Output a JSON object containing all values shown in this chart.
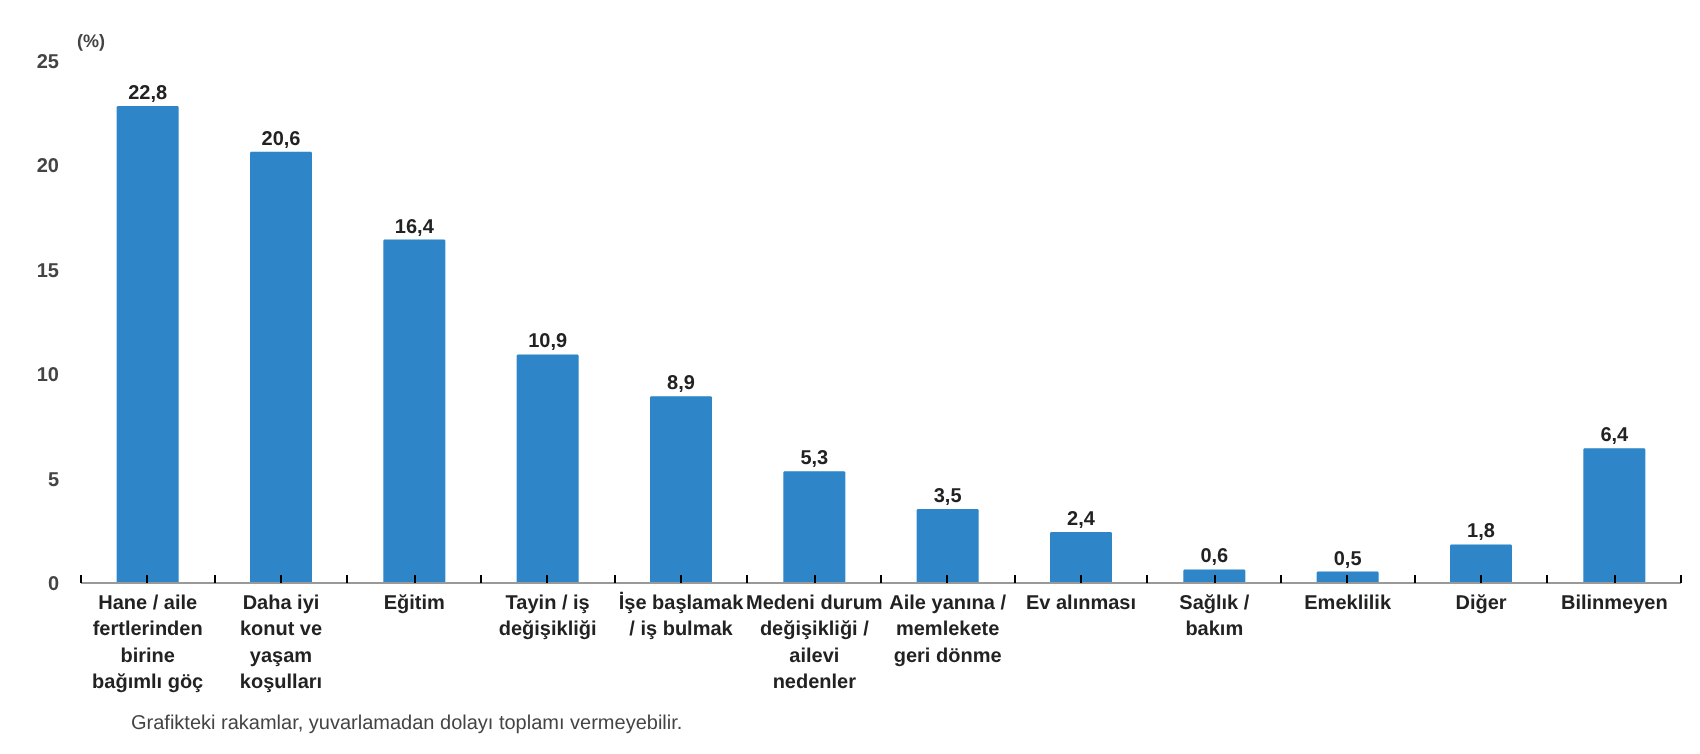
{
  "chart_data": {
    "type": "bar",
    "ylabel": "(%)",
    "categories": [
      "Hane / aile fertlerinden birine bağımlı göç",
      "Daha iyi konut ve yaşam koşulları",
      "Eğitim",
      "Tayin / iş değişikliği",
      "İşe başlamak / iş bulmak",
      "Medeni durum değişikliği / ailevi nedenler",
      "Aile yanına / memlekete geri dönme",
      "Ev alınması",
      "Sağlık / bakım",
      "Emeklilik",
      "Diğer",
      "Bilinmeyen"
    ],
    "values": [
      22.8,
      20.6,
      16.4,
      10.9,
      8.9,
      5.3,
      3.5,
      2.4,
      0.6,
      0.5,
      1.8,
      6.4
    ],
    "value_labels": [
      "22,8",
      "20,6",
      "16,4",
      "10,9",
      "8,9",
      "5,3",
      "3,5",
      "2,4",
      "0,6",
      "0,5",
      "1,8",
      "6,4"
    ],
    "color": "#2e86c9",
    "ylim": [
      0,
      25
    ],
    "yticks": [
      0,
      5,
      10,
      15,
      20,
      25
    ],
    "grid": false,
    "annotations": [
      "Grafikteki rakamlar, yuvarlamadan dolayı toplamı vermeyebilir."
    ]
  }
}
